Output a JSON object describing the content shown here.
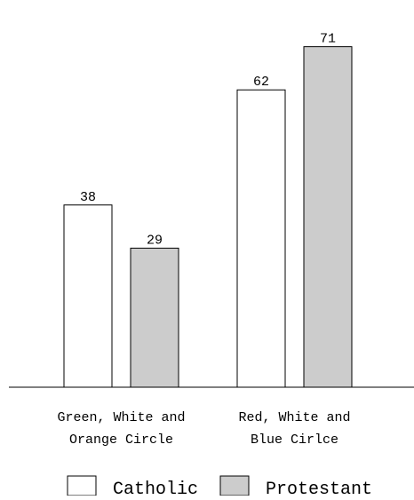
{
  "chart_data": {
    "type": "bar",
    "title": "",
    "xlabel": "",
    "ylabel": "",
    "categories": [
      [
        "Green, White and",
        "Orange Circle"
      ],
      [
        "Red, White and",
        "Blue Cirlce"
      ]
    ],
    "series": [
      {
        "name": "Catholic",
        "values": [
          38,
          62
        ],
        "color": "#ffffff"
      },
      {
        "name": "Protestant",
        "values": [
          29,
          71
        ],
        "color": "#cccccc"
      }
    ],
    "ylim": [
      0,
      75
    ],
    "grid": false,
    "legend_position": "bottom"
  }
}
